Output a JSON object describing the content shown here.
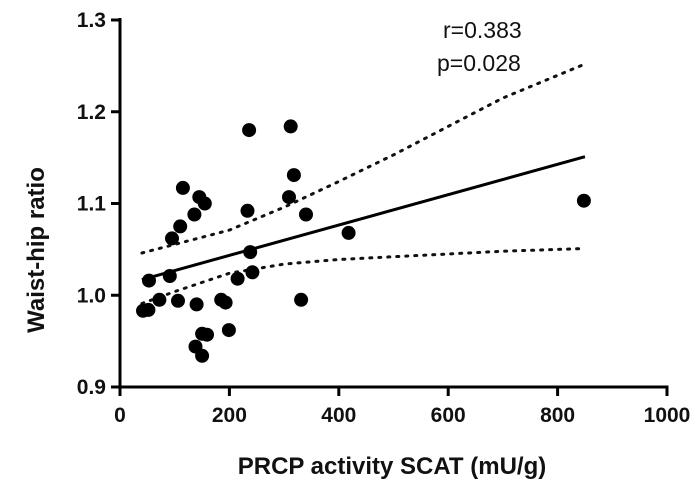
{
  "chart_data": {
    "type": "scatter",
    "title": "",
    "xlabel": "PRCP activity SCAT (mU/g)",
    "ylabel": "Waist-hip ratio",
    "xlim": [
      0,
      1000
    ],
    "ylim": [
      0.9,
      1.3
    ],
    "x_ticks": [
      0,
      200,
      400,
      600,
      800,
      1000
    ],
    "x_tick_labels": [
      "0",
      "200",
      "400",
      "600",
      "800",
      "1000"
    ],
    "y_ticks": [
      0.9,
      1.0,
      1.1,
      1.2,
      1.3
    ],
    "y_tick_labels": [
      "0.9",
      "1.0",
      "1.1",
      "1.2",
      "1.3"
    ],
    "grid": false,
    "annotations": [
      "r=0.383",
      "p=0.028"
    ],
    "points": [
      {
        "x": 42,
        "y": 0.983
      },
      {
        "x": 52,
        "y": 0.984
      },
      {
        "x": 53,
        "y": 1.016
      },
      {
        "x": 72,
        "y": 0.995
      },
      {
        "x": 91,
        "y": 1.021
      },
      {
        "x": 95,
        "y": 1.062
      },
      {
        "x": 106,
        "y": 0.994
      },
      {
        "x": 110,
        "y": 1.075
      },
      {
        "x": 115,
        "y": 1.117
      },
      {
        "x": 136,
        "y": 1.088
      },
      {
        "x": 138,
        "y": 0.944
      },
      {
        "x": 140,
        "y": 0.99
      },
      {
        "x": 145,
        "y": 1.107
      },
      {
        "x": 150,
        "y": 0.934
      },
      {
        "x": 150,
        "y": 0.958
      },
      {
        "x": 155,
        "y": 1.1
      },
      {
        "x": 159,
        "y": 0.957
      },
      {
        "x": 185,
        "y": 0.995
      },
      {
        "x": 193,
        "y": 0.992
      },
      {
        "x": 199,
        "y": 0.962
      },
      {
        "x": 215,
        "y": 1.018
      },
      {
        "x": 233,
        "y": 1.092
      },
      {
        "x": 236,
        "y": 1.18
      },
      {
        "x": 238,
        "y": 1.047
      },
      {
        "x": 242,
        "y": 1.025
      },
      {
        "x": 309,
        "y": 1.107
      },
      {
        "x": 312,
        "y": 1.184
      },
      {
        "x": 318,
        "y": 1.131
      },
      {
        "x": 331,
        "y": 0.995
      },
      {
        "x": 340,
        "y": 1.088
      },
      {
        "x": 418,
        "y": 1.068
      },
      {
        "x": 848,
        "y": 1.103
      }
    ],
    "regression": {
      "x": [
        40,
        850
      ],
      "y": [
        1.017,
        1.151
      ]
    },
    "ci_upper": {
      "x": [
        40,
        200,
        300,
        400,
        500,
        600,
        700,
        850
      ],
      "y": [
        1.046,
        1.071,
        1.096,
        1.124,
        1.153,
        1.184,
        1.215,
        1.252
      ]
    },
    "ci_lower": {
      "x": [
        40,
        100,
        200,
        300,
        400,
        500,
        600,
        700,
        850
      ],
      "y": [
        0.991,
        1.004,
        1.024,
        1.034,
        1.039,
        1.042,
        1.045,
        1.048,
        1.051
      ]
    }
  }
}
